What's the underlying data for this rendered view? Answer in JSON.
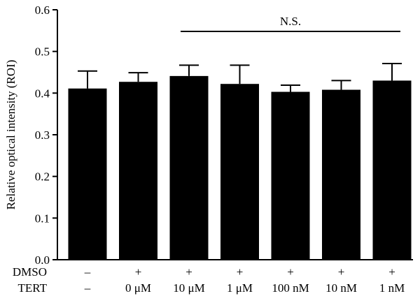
{
  "chart_data": {
    "type": "bar",
    "ylabel": "Relative optical intensity (ROI)",
    "ylim": [
      0,
      0.6
    ],
    "yticks": [
      "0.0",
      "0.1",
      "0.2",
      "0.3",
      "0.4",
      "0.5",
      "0.6"
    ],
    "row_labels": [
      "DMSO",
      "TERT"
    ],
    "categories": [
      {
        "dmso": "–",
        "tert": "–"
      },
      {
        "dmso": "+",
        "tert": "0 μM"
      },
      {
        "dmso": "+",
        "tert": "10 μM"
      },
      {
        "dmso": "+",
        "tert": "1 μM"
      },
      {
        "dmso": "+",
        "tert": "100 nM"
      },
      {
        "dmso": "+",
        "tert": "10 nM"
      },
      {
        "dmso": "+",
        "tert": "1 nM"
      }
    ],
    "values": [
      0.411,
      0.427,
      0.441,
      0.422,
      0.403,
      0.408,
      0.43
    ],
    "errors": [
      0.042,
      0.022,
      0.026,
      0.045,
      0.016,
      0.022,
      0.041
    ],
    "bar_color": "#000000",
    "significance": {
      "label": "N.S.",
      "from_index": 2,
      "to_index": 6
    }
  }
}
